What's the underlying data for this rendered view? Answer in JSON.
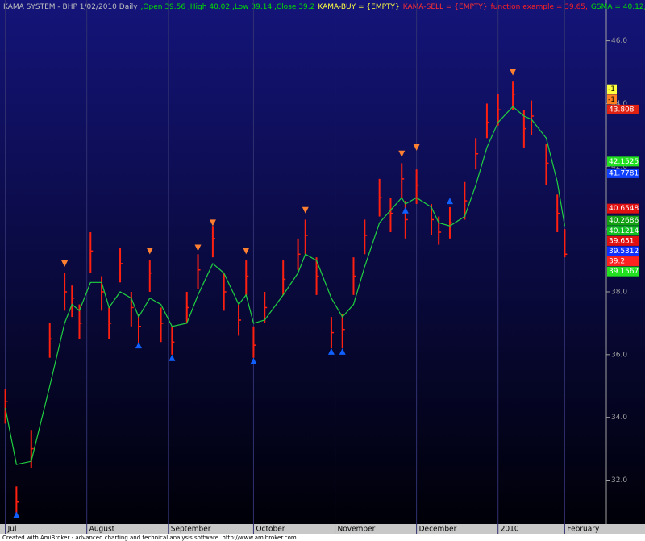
{
  "chart_data": {
    "type": "ohlc",
    "title_parts": [
      {
        "text": "KAMA SYSTEM - BHP  1/02/2010  Daily",
        "color": "#c0c0c0"
      },
      {
        "text": ",Open 39.56 ,High 40.02 ,Low 39.14 ,Close 39.2",
        "color": "#00e000"
      },
      {
        "text": "KAMA-BUY = {EMPTY}",
        "color": "#ffff40"
      },
      {
        "text": "KAMA-SELL = {EMPTY}",
        "color": "#ff3030"
      },
      {
        "text": "function example = 39.65,",
        "color": "#ff2020"
      },
      {
        "text": "GSMA = 40.12,",
        "color": "#00e000"
      },
      {
        "text": "LinReg = ",
        "color": "#ff2020"
      }
    ],
    "footer": "Created with AmiBroker - advanced charting and technical analysis software. http://www.amibroker.com",
    "x": [
      1,
      4,
      8,
      13,
      17,
      19,
      21,
      24,
      27,
      29,
      32,
      35,
      37,
      40,
      43,
      46,
      50,
      53,
      57,
      60,
      64,
      66,
      68,
      71,
      76,
      80,
      82,
      85,
      89,
      92,
      95,
      98,
      102,
      105,
      108,
      109,
      112,
      116,
      118,
      121,
      125,
      128,
      131,
      134,
      138,
      141,
      143,
      147,
      150,
      152
    ],
    "high": [
      34.9,
      31.8,
      33.6,
      37.0,
      38.6,
      38.2,
      37.6,
      39.9,
      38.5,
      37.5,
      39.4,
      38.0,
      37.3,
      39.0,
      37.5,
      36.9,
      38.0,
      39.2,
      40.1,
      38.6,
      37.6,
      39.0,
      36.9,
      38.0,
      39.0,
      39.7,
      40.3,
      39.1,
      37.2,
      37.3,
      39.1,
      40.3,
      41.6,
      41.0,
      42.1,
      40.9,
      41.9,
      40.8,
      40.4,
      40.7,
      41.5,
      42.9,
      44.0,
      44.3,
      44.7,
      43.8,
      44.1,
      42.7,
      41.1,
      40.0
    ],
    "low": [
      33.8,
      30.8,
      32.4,
      35.9,
      37.4,
      37.2,
      36.5,
      38.6,
      37.4,
      36.5,
      38.3,
      36.9,
      36.3,
      38.0,
      36.4,
      36.0,
      37.0,
      38.1,
      39.1,
      37.4,
      36.6,
      37.9,
      35.9,
      37.0,
      37.9,
      38.7,
      39.2,
      37.9,
      36.2,
      36.2,
      37.9,
      39.2,
      40.4,
      39.9,
      41.0,
      39.7,
      40.8,
      39.8,
      39.5,
      39.7,
      40.3,
      41.9,
      42.9,
      43.3,
      43.8,
      42.6,
      43.0,
      41.4,
      39.9,
      39.1
    ],
    "close": [
      34.5,
      31.3,
      33.0,
      36.5,
      38.0,
      37.8,
      37.0,
      39.3,
      38.0,
      37.0,
      38.9,
      37.5,
      36.9,
      38.6,
      37.0,
      36.4,
      37.5,
      38.7,
      39.7,
      38.0,
      37.1,
      38.5,
      36.3,
      37.5,
      38.4,
      39.2,
      39.8,
      38.5,
      36.7,
      36.8,
      38.5,
      39.8,
      41.0,
      40.5,
      41.6,
      40.3,
      41.4,
      40.3,
      39.9,
      40.2,
      40.9,
      42.4,
      43.4,
      43.8,
      44.3,
      43.2,
      43.6,
      42.1,
      40.5,
      39.2
    ],
    "bar_color": "#ff2010",
    "series": [
      {
        "name": "GSMA",
        "color": "#20d040",
        "values": [
          34.3,
          32.5,
          32.6,
          35.0,
          37.0,
          37.6,
          37.4,
          38.3,
          38.3,
          37.5,
          38.0,
          37.8,
          37.2,
          37.8,
          37.6,
          36.9,
          37.0,
          37.9,
          38.9,
          38.6,
          37.6,
          37.9,
          37.0,
          37.1,
          37.9,
          38.6,
          39.2,
          39.0,
          37.8,
          37.2,
          37.6,
          38.8,
          40.2,
          40.6,
          41.0,
          40.8,
          41.0,
          40.7,
          40.2,
          40.1,
          40.4,
          41.4,
          42.6,
          43.4,
          43.9,
          43.6,
          43.5,
          42.9,
          41.5,
          40.1
        ]
      }
    ],
    "buy_signals": {
      "color": "#1060ff",
      "x": [
        4,
        37,
        46,
        68,
        89,
        92,
        109,
        121
      ],
      "values": [
        30.9,
        36.3,
        35.9,
        35.8,
        36.1,
        36.1,
        40.6,
        40.9
      ]
    },
    "sell_signals": {
      "color": "#ff8030",
      "x": [
        17,
        40,
        53,
        57,
        66,
        82,
        108,
        112,
        138
      ],
      "values": [
        38.9,
        39.3,
        39.4,
        40.2,
        39.3,
        40.6,
        42.4,
        42.6,
        45.0
      ]
    },
    "flags": [
      {
        "label": "-1",
        "color": "#ffff40"
      },
      {
        "label": "-1",
        "color": "#ff8020"
      }
    ],
    "right_labels": [
      {
        "value": 43.808,
        "label": "43.808",
        "color": "#e02010"
      },
      {
        "value": 42.1525,
        "label": "42.1525",
        "color": "#20e020"
      },
      {
        "value": 41.7781,
        "label": "41.7781",
        "color": "#1040ff"
      },
      {
        "value": 40.6548,
        "label": "40.6548",
        "color": "#e01010"
      },
      {
        "value": 40.2686,
        "label": "40.2686",
        "color": "#10a010"
      },
      {
        "value": 40.1214,
        "label": "40.1214",
        "color": "#10c020"
      },
      {
        "value": 39.651,
        "label": "39.651",
        "color": "#e01010"
      },
      {
        "value": 39.5312,
        "label": "39.5312",
        "color": "#1030ff"
      },
      {
        "value": 39.2,
        "label": "39.2",
        "color": "#ff2020"
      },
      {
        "value": 39.1567,
        "label": "39.1567",
        "color": "#20e020"
      }
    ],
    "xlim": [
      0,
      153
    ],
    "xticks": [
      {
        "value": 1,
        "label": "Jul"
      },
      {
        "value": 23,
        "label": "August"
      },
      {
        "value": 45,
        "label": "September"
      },
      {
        "value": 68,
        "label": "October"
      },
      {
        "value": 90,
        "label": "November"
      },
      {
        "value": 112,
        "label": "December"
      },
      {
        "value": 134,
        "label": "2010"
      },
      {
        "value": 152,
        "label": "February"
      }
    ],
    "ylim": [
      30.6,
      47.3
    ],
    "yticks": [
      {
        "value": 32,
        "label": "32.0"
      },
      {
        "value": 34,
        "label": "34.0"
      },
      {
        "value": 36,
        "label": "36.0"
      },
      {
        "value": 38,
        "label": "38.0"
      },
      {
        "value": 40,
        "label": "40.0"
      },
      {
        "value": 42,
        "label": "42.0"
      },
      {
        "value": 44,
        "label": "44.0"
      },
      {
        "value": 46,
        "label": "46.0"
      }
    ]
  }
}
